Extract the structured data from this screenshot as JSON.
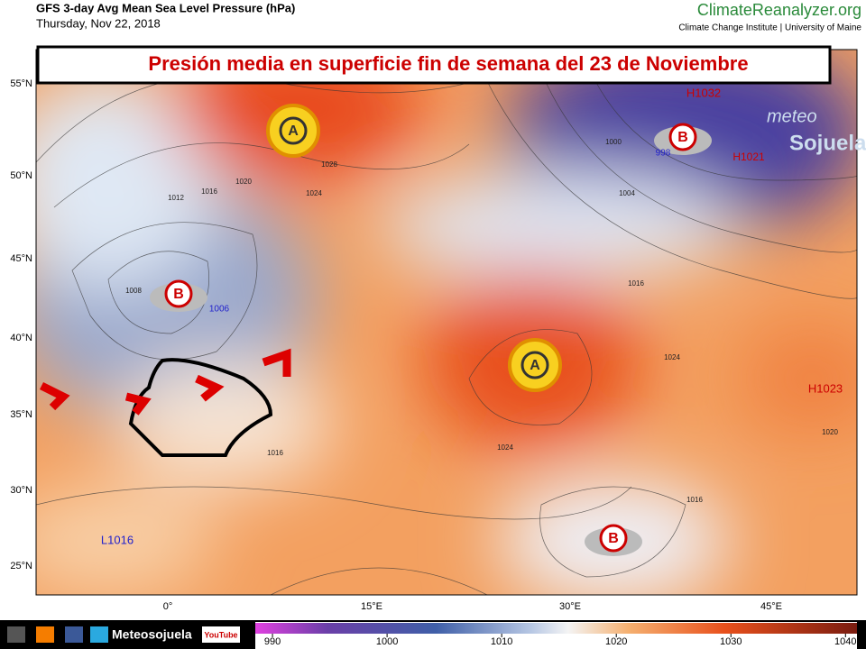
{
  "header": {
    "title": "GFS 3-day Avg Mean Sea Level Pressure (hPa)",
    "date": "Thursday, Nov 22, 2018",
    "brand": "ClimateReanalyzer.org",
    "brand_sub": "Climate Change Institute | University of Maine"
  },
  "banner": "Presión media en superficie fin de semana del 23 de Noviembre",
  "map": {
    "lat_labels": [
      "55°N",
      "50°N",
      "45°N",
      "40°N",
      "35°N",
      "30°N",
      "25°N"
    ],
    "lon_labels": [
      "0°",
      "15°E",
      "30°E",
      "45°E"
    ],
    "pressure_labels": [
      "H1032",
      "H1023",
      "L1016",
      "H1021",
      "998",
      "1006",
      "1028",
      "1024",
      "1020",
      "1012",
      "1016",
      "1008",
      "1004",
      "1000",
      "1024",
      "1016",
      "1024",
      "1020",
      "1016",
      "1016"
    ],
    "symbols": [
      "A",
      "A",
      "B",
      "B",
      "B"
    ],
    "watermark": [
      "meteo",
      "Sojuela"
    ]
  },
  "footer": {
    "name": "Meteosojuela",
    "video": "YouTube"
  },
  "colorbar": {
    "range": [
      988.5,
      1041
    ],
    "ticks": [
      990,
      1000,
      1010,
      1020,
      1030,
      1040
    ]
  }
}
